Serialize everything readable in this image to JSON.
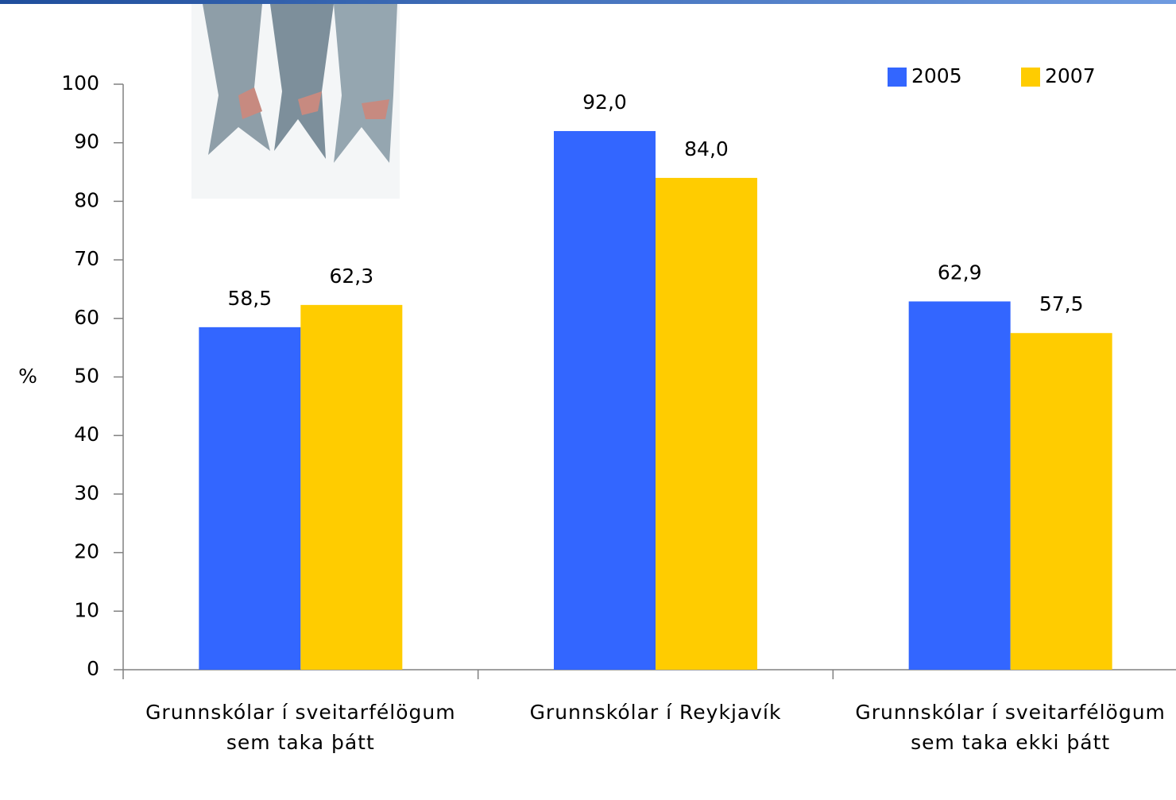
{
  "chart_data": {
    "type": "bar",
    "y_label": "%",
    "categories": [
      "Grunnskólar í sveitarfélögum sem taka þátt",
      "Grunnskólar í Reykjavík",
      "Grunnskólar í sveitarfélögum sem taka ekki þátt"
    ],
    "series": [
      {
        "name": "2005",
        "color": "#3366ff",
        "values": [
          58.5,
          92.0,
          62.9
        ],
        "value_labels": [
          "58,5",
          "92,0",
          "62,9"
        ]
      },
      {
        "name": "2007",
        "color": "#ffcc00",
        "values": [
          62.3,
          84.0,
          57.5
        ],
        "value_labels": [
          "62,3",
          "84,0",
          "57,5"
        ]
      }
    ],
    "ylim": [
      0,
      100
    ],
    "yticks": [
      0,
      10,
      20,
      30,
      40,
      50,
      60,
      70,
      80,
      90,
      100
    ],
    "legend": "top-right",
    "grid": false
  }
}
